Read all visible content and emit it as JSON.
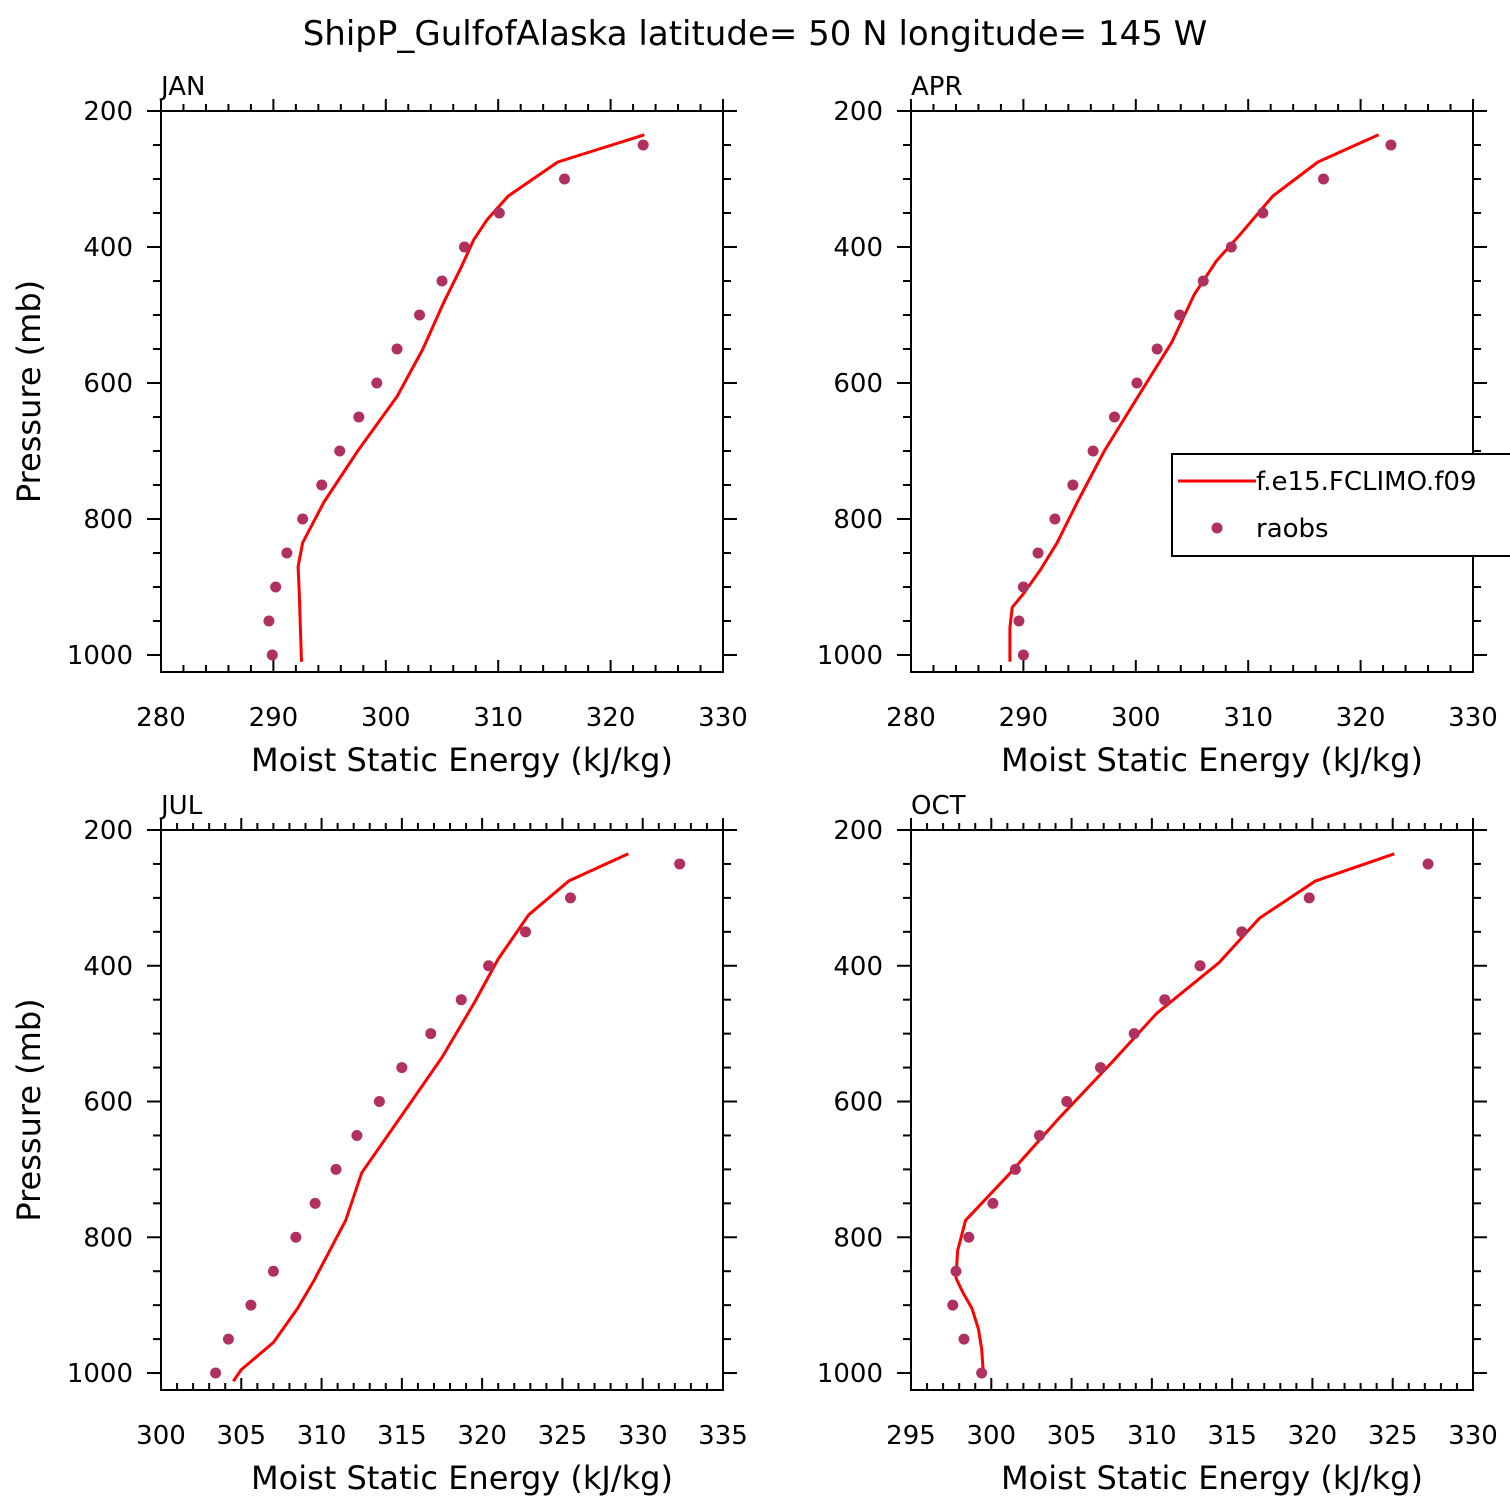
{
  "figure": {
    "title": "ShipP_GulfofAlaska  latitude= 50 N longitude= 145 W"
  },
  "colors": {
    "model_line": "#ff0000",
    "obs_marker": "#b03060",
    "axes": "#000000"
  },
  "legend": {
    "entries": [
      {
        "label": "f.e15.FCLIMO.f09",
        "style": "line",
        "color": "#ff0000"
      },
      {
        "label": "raobs",
        "style": "marker",
        "color": "#b03060"
      }
    ]
  },
  "chart_data": [
    {
      "type": "line",
      "title": "JAN",
      "xlabel": "Moist Static Energy (kJ/kg)",
      "ylabel": "Pressure (mb)",
      "xlim": [
        280,
        330
      ],
      "xticks": [
        280,
        290,
        300,
        310,
        320,
        330
      ],
      "ylim": [
        1025,
        200
      ],
      "yticks": [
        200,
        400,
        600,
        800,
        1000
      ],
      "series": [
        {
          "name": "f.e15.FCLIMO.f09",
          "style": "line",
          "x": [
            292.5,
            292.4,
            292.3,
            292.2,
            292.6,
            294.5,
            297.5,
            301,
            303.3,
            305.2,
            306.7,
            307.8,
            309,
            310.9,
            315.3,
            323
          ],
          "y": [
            1010,
            960,
            910,
            870,
            835,
            775,
            700,
            620,
            550,
            480,
            430,
            390,
            360,
            325,
            275,
            235
          ]
        },
        {
          "name": "raobs",
          "style": "marker",
          "x": [
            289.9,
            289.6,
            290.2,
            291.2,
            292.6,
            294.3,
            295.9,
            297.6,
            299.2,
            301.0,
            303.0,
            305.0,
            307.0,
            310.1,
            315.9,
            322.9
          ],
          "y": [
            1000,
            950,
            900,
            850,
            800,
            750,
            700,
            650,
            600,
            550,
            500,
            450,
            400,
            350,
            300,
            250
          ]
        }
      ]
    },
    {
      "type": "line",
      "title": "APR",
      "xlabel": "Moist Static Energy (kJ/kg)",
      "ylabel": "",
      "xlim": [
        280,
        330
      ],
      "xticks": [
        280,
        290,
        300,
        310,
        320,
        330
      ],
      "ylim": [
        1025,
        200
      ],
      "yticks": [
        200,
        400,
        600,
        800,
        1000
      ],
      "series": [
        {
          "name": "f.e15.FCLIMO.f09",
          "style": "line",
          "x": [
            288.8,
            288.8,
            289.0,
            290.0,
            291.5,
            293.0,
            294.8,
            297.2,
            300.2,
            303.2,
            305.2,
            307.2,
            309.1,
            312.2,
            316.2,
            321.6
          ],
          "y": [
            1010,
            960,
            930,
            910,
            875,
            835,
            775,
            700,
            620,
            540,
            470,
            420,
            385,
            325,
            275,
            235
          ]
        },
        {
          "name": "raobs",
          "style": "marker",
          "x": [
            290.0,
            289.6,
            290.0,
            291.3,
            292.8,
            294.4,
            296.2,
            298.1,
            300.1,
            301.9,
            303.9,
            306.0,
            308.5,
            311.3,
            316.7,
            322.7
          ],
          "y": [
            1000,
            950,
            900,
            850,
            800,
            750,
            700,
            650,
            600,
            550,
            500,
            450,
            400,
            350,
            300,
            250
          ]
        }
      ]
    },
    {
      "type": "line",
      "title": "JUL",
      "xlabel": "Moist Static Energy (kJ/kg)",
      "ylabel": "Pressure (mb)",
      "xlim": [
        300,
        335
      ],
      "xticks": [
        300,
        305,
        310,
        315,
        320,
        325,
        330,
        335
      ],
      "ylim": [
        1025,
        200
      ],
      "yticks": [
        200,
        400,
        600,
        800,
        1000
      ],
      "series": [
        {
          "name": "f.e15.FCLIMO.f09",
          "style": "line",
          "x": [
            304.5,
            305,
            307,
            308.5,
            309.5,
            311.5,
            312.5,
            315,
            317.5,
            319.5,
            321.0,
            322.9,
            325.4,
            329.1
          ],
          "y": [
            1012,
            995,
            955,
            905,
            865,
            775,
            705,
            620,
            535,
            455,
            390,
            325,
            275,
            235
          ]
        },
        {
          "name": "raobs",
          "style": "marker",
          "x": [
            303.4,
            304.2,
            305.6,
            307.0,
            308.4,
            309.6,
            310.9,
            312.2,
            313.6,
            315.0,
            316.8,
            318.7,
            320.4,
            322.7,
            325.5,
            332.3
          ],
          "y": [
            1000,
            950,
            900,
            850,
            800,
            750,
            700,
            650,
            600,
            550,
            500,
            450,
            400,
            350,
            300,
            250
          ]
        }
      ]
    },
    {
      "type": "line",
      "title": "OCT",
      "xlabel": "Moist Static Energy (kJ/kg)",
      "ylabel": "",
      "xlim": [
        295,
        330
      ],
      "xticks": [
        295,
        300,
        305,
        310,
        315,
        320,
        325,
        330
      ],
      "ylim": [
        1025,
        200
      ],
      "yticks": [
        200,
        400,
        600,
        800,
        1000
      ],
      "series": [
        {
          "name": "f.e15.FCLIMO.f09",
          "style": "line",
          "x": [
            299.5,
            299.4,
            299.2,
            298.8,
            298.2,
            297.8,
            297.9,
            298.4,
            301,
            304.2,
            307.6,
            310.3,
            314.2,
            316.7,
            320.2,
            325.1
          ],
          "y": [
            1000,
            965,
            935,
            905,
            880,
            860,
            820,
            775,
            710,
            625,
            540,
            470,
            395,
            330,
            275,
            235
          ]
        },
        {
          "name": "raobs",
          "style": "marker",
          "x": [
            299.4,
            298.3,
            297.6,
            297.8,
            298.6,
            300.1,
            301.5,
            303.0,
            304.7,
            306.8,
            308.9,
            310.8,
            313.0,
            315.6,
            319.8,
            327.2
          ],
          "y": [
            1000,
            950,
            900,
            850,
            800,
            750,
            700,
            650,
            600,
            550,
            500,
            450,
            400,
            350,
            300,
            250
          ]
        }
      ]
    }
  ]
}
